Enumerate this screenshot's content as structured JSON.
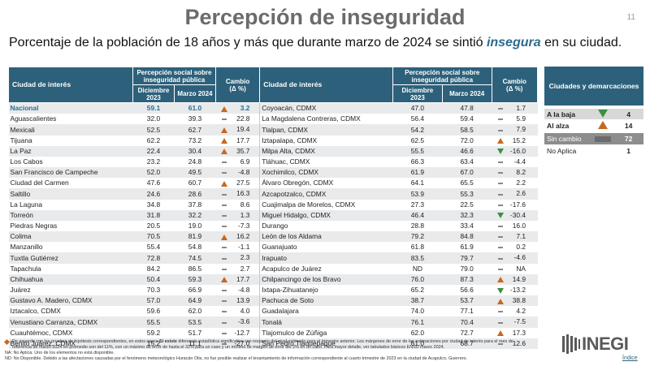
{
  "title": "Percepción de inseguridad",
  "page_number": "11",
  "subtitle": {
    "pre": "Porcentaje de la población de 18 años y más que durante marzo de 2024 se sintió ",
    "emphasis": "insegura",
    "post": " en su ciudad."
  },
  "table": {
    "header": {
      "city": "Ciudad de interés",
      "perception": "Percepción social sobre inseguridad pública",
      "dec": "Diciembre 2023",
      "mar": "Marzo 2024",
      "change": "Cambio",
      "change_unit": "(Δ %)"
    },
    "left": [
      {
        "city": "Nacional",
        "dec": "59.1",
        "mar": "61.0",
        "sym": "up",
        "chg": "3.2"
      },
      {
        "city": "Aguascalientes",
        "dec": "32.0",
        "mar": "39.3",
        "sym": "eq",
        "chg": "22.8"
      },
      {
        "city": "Mexicali",
        "dec": "52.5",
        "mar": "62.7",
        "sym": "up",
        "chg": "19.4"
      },
      {
        "city": "Tijuana",
        "dec": "62.2",
        "mar": "73.2",
        "sym": "up",
        "chg": "17.7"
      },
      {
        "city": "La Paz",
        "dec": "22.4",
        "mar": "30.4",
        "sym": "up",
        "chg": "35.7"
      },
      {
        "city": "Los Cabos",
        "dec": "23.2",
        "mar": "24.8",
        "sym": "eq",
        "chg": "6.9"
      },
      {
        "city": "San Francisco de Campeche",
        "dec": "52.0",
        "mar": "49.5",
        "sym": "eq",
        "chg": "-4.8"
      },
      {
        "city": "Ciudad del Carmen",
        "dec": "47.6",
        "mar": "60.7",
        "sym": "up",
        "chg": "27.5"
      },
      {
        "city": "Saltillo",
        "dec": "24.6",
        "mar": "28.6",
        "sym": "eq",
        "chg": "16.3"
      },
      {
        "city": "La Laguna",
        "dec": "34.8",
        "mar": "37.8",
        "sym": "eq",
        "chg": "8.6"
      },
      {
        "city": "Torreón",
        "dec": "31.8",
        "mar": "32.2",
        "sym": "eq",
        "chg": "1.3"
      },
      {
        "city": "Piedras Negras",
        "dec": "20.5",
        "mar": "19.0",
        "sym": "eq",
        "chg": "-7.3"
      },
      {
        "city": "Colima",
        "dec": "70.5",
        "mar": "81.9",
        "sym": "up",
        "chg": "16.2"
      },
      {
        "city": "Manzanillo",
        "dec": "55.4",
        "mar": "54.8",
        "sym": "eq",
        "chg": "-1.1"
      },
      {
        "city": "Tuxtla Gutiérrez",
        "dec": "72.8",
        "mar": "74.5",
        "sym": "eq",
        "chg": "2.3"
      },
      {
        "city": "Tapachula",
        "dec": "84.2",
        "mar": "86.5",
        "sym": "eq",
        "chg": "2.7"
      },
      {
        "city": "Chihuahua",
        "dec": "50.4",
        "mar": "59.3",
        "sym": "up",
        "chg": "17.7"
      },
      {
        "city": "Juárez",
        "dec": "70.3",
        "mar": "66.9",
        "sym": "eq",
        "chg": "-4.8"
      },
      {
        "city": "Gustavo A. Madero, CDMX",
        "dec": "57.0",
        "mar": "64.9",
        "sym": "eq",
        "chg": "13.9"
      },
      {
        "city": "Iztacalco, CDMX",
        "dec": "59.6",
        "mar": "62.0",
        "sym": "eq",
        "chg": "4.0"
      },
      {
        "city": "Venustiano Carranza, CDMX",
        "dec": "55.5",
        "mar": "53.5",
        "sym": "eq",
        "chg": "-3.6"
      },
      {
        "city": "Cuauhtémoc, CDMX",
        "dec": "59.2",
        "mar": "51.7",
        "sym": "eq",
        "chg": "-12.7"
      },
      {
        "city": "Benito Juárez, CDMX",
        "dec": "15.2",
        "mar": "11.1",
        "sym": "eq",
        "chg": "-27.0"
      }
    ],
    "right": [
      {
        "city": "Coyoacán, CDMX",
        "dec": "47.0",
        "mar": "47.8",
        "sym": "eq",
        "chg": "1.7"
      },
      {
        "city": "La Magdalena Contreras, CDMX",
        "dec": "56.4",
        "mar": "59.4",
        "sym": "eq",
        "chg": "5.9"
      },
      {
        "city": "Tlalpan, CDMX",
        "dec": "54.2",
        "mar": "58.5",
        "sym": "eq",
        "chg": "7.9"
      },
      {
        "city": "Iztapalapa, CDMX",
        "dec": "62.5",
        "mar": "72.0",
        "sym": "up",
        "chg": "15.2"
      },
      {
        "city": "Milpa Alta, CDMX",
        "dec": "55.5",
        "mar": "46.6",
        "sym": "down",
        "chg": "-16.0"
      },
      {
        "city": "Tláhuac, CDMX",
        "dec": "66.3",
        "mar": "63.4",
        "sym": "eq",
        "chg": "-4.4"
      },
      {
        "city": "Xochimilco, CDMX",
        "dec": "61.9",
        "mar": "67.0",
        "sym": "eq",
        "chg": "8.2"
      },
      {
        "city": "Álvaro Obregón, CDMX",
        "dec": "64.1",
        "mar": "65.5",
        "sym": "eq",
        "chg": "2.2"
      },
      {
        "city": "Azcapotzalco, CDMX",
        "dec": "53.9",
        "mar": "55.3",
        "sym": "eq",
        "chg": "2.6"
      },
      {
        "city": "Cuajimalpa de Morelos, CDMX",
        "dec": "27.3",
        "mar": "22.5",
        "sym": "eq",
        "chg": "-17.6"
      },
      {
        "city": "Miguel Hidalgo, CDMX",
        "dec": "46.4",
        "mar": "32.3",
        "sym": "down",
        "chg": "-30.4"
      },
      {
        "city": "Durango",
        "dec": "28.8",
        "mar": "33.4",
        "sym": "eq",
        "chg": "16.0"
      },
      {
        "city": "León de los Aldama",
        "dec": "79.2",
        "mar": "84.8",
        "sym": "eq",
        "chg": "7.1"
      },
      {
        "city": "Guanajuato",
        "dec": "61.8",
        "mar": "61.9",
        "sym": "eq",
        "chg": "0.2"
      },
      {
        "city": "Irapuato",
        "dec": "83.5",
        "mar": "79.7",
        "sym": "eq",
        "chg": "-4.6"
      },
      {
        "city": "Acapulco de Juárez",
        "dec": "ND",
        "mar": "79.0",
        "sym": "eq",
        "chg": "NA"
      },
      {
        "city": "Chilpancingo de los Bravo",
        "dec": "76.0",
        "mar": "87.3",
        "sym": "up",
        "chg": "14.9"
      },
      {
        "city": "Ixtapa-Zihuatanejo",
        "dec": "65.2",
        "mar": "56.6",
        "sym": "down",
        "chg": "-13.2"
      },
      {
        "city": "Pachuca de Soto",
        "dec": "38.7",
        "mar": "53.7",
        "sym": "up",
        "chg": "38.8"
      },
      {
        "city": "Guadalajara",
        "dec": "74.0",
        "mar": "77.1",
        "sym": "eq",
        "chg": "4.2"
      },
      {
        "city": "Tonalá",
        "dec": "76.1",
        "mar": "70.4",
        "sym": "eq",
        "chg": "-7.5"
      },
      {
        "city": "Tlajomulco de Zúñiga",
        "dec": "62.0",
        "mar": "72.7",
        "sym": "up",
        "chg": "17.3"
      },
      {
        "city": "San Pedro Tlaquepaque",
        "dec": "61.0",
        "mar": "68.7",
        "sym": "eq",
        "chg": "12.6"
      }
    ]
  },
  "summary": {
    "header": "Ciudades y demarcaciones",
    "rows": [
      {
        "label": "A la baja",
        "icon": "down",
        "count": "4"
      },
      {
        "label": "Al alza",
        "icon": "up",
        "count": "14"
      },
      {
        "label": "Sin cambio",
        "icon": "eq",
        "count": "72"
      },
      {
        "label": "No Aplica",
        "icon": "none",
        "count": "1"
      }
    ]
  },
  "footnotes": {
    "note1_pre": "De acuerdo con las pruebas de hipótesis correspondientes, en estos casos ",
    "note1_bold": "Sí existe",
    "note1_post": " diferencia estadística significativa con respecto del nivel estimado para el trimestre anterior. Los márgenes de error de las estimaciones por ciudad de interés para el mes de referencia de marzo 2024 en promedio son del 11%, con un máximo de error de hasta el 32% para un caso y un mínimo de margen de error del 2% en un caso. Para mayor detalle, ver tabulados básicos ENSU marzo 2024.",
    "note2": "NA: No Aplica. Uno de los elementos no está disponible.",
    "note3": "ND: No Disponible. Debido a las afectaciones causadas por el fenómeno meteorológico Huracán Otis, no fue posible realizar el levantamiento de información correspondiente al cuarto trimestre de 2023 en la ciudad de Acapulco, Guerrero."
  },
  "logo": {
    "text": "INEGI",
    "sub": "Índice"
  },
  "colors": {
    "header_bg": "#2d617b",
    "up": "#c8671e",
    "down": "#3e8f40",
    "highlight": "#2b6e8f"
  }
}
